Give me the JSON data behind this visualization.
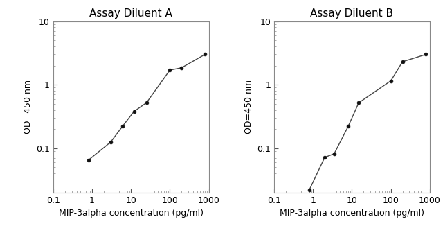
{
  "title_A": "Assay Diluent A",
  "title_B": "Assay Diluent B",
  "xlabel": "MIP-3alpha concentration (pg/ml)",
  "ylabel": "OD=450 nm",
  "xlim": [
    0.1,
    1000
  ],
  "ylim": [
    0.02,
    10
  ],
  "x_A": [
    0.8,
    3.0,
    6.0,
    12.0,
    25.0,
    100.0,
    200.0,
    800.0
  ],
  "y_A": [
    0.065,
    0.125,
    0.22,
    0.38,
    0.52,
    1.7,
    1.85,
    3.0
  ],
  "x_B": [
    0.8,
    2.0,
    3.5,
    8.0,
    15.0,
    100.0,
    200.0,
    800.0
  ],
  "y_B": [
    0.022,
    0.072,
    0.082,
    0.22,
    0.52,
    1.15,
    2.3,
    3.0
  ],
  "line_color": "#444444",
  "marker_color": "#111111",
  "bg_color": "#ffffff",
  "title_fontsize": 11,
  "label_fontsize": 9,
  "tick_fontsize": 9
}
